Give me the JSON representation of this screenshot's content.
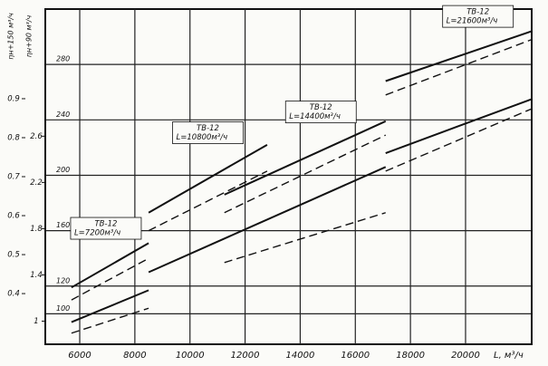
{
  "chart_data": {
    "type": "line",
    "x_label": "L, м³/ч",
    "y_labels": [
      "ηн+150 м³/ч",
      "ηн+90 м³/ч"
    ],
    "xlim": [
      4750,
      22400
    ],
    "xticks": [
      6000,
      8000,
      10000,
      12000,
      14000,
      16000,
      18000,
      20000
    ],
    "ylim": [
      78,
      320
    ],
    "yticks": [
      100,
      120,
      160,
      200,
      240,
      280
    ],
    "y2lim": [
      0.8,
      3.7
    ],
    "y2ticks": [
      1,
      1.4,
      1.8,
      2.2,
      2.6
    ],
    "y3lim": [
      0.27,
      1.13
    ],
    "y3ticks": [
      0.4,
      0.5,
      0.6,
      0.7,
      0.8,
      0.9
    ],
    "grid": true,
    "series": [
      {
        "color": "#111111",
        "style": "solid",
        "x": [
          5700,
          8500,
          null,
          8500,
          12800,
          null,
          11250,
          17100,
          null,
          17100,
          22400
        ],
        "values": [
          119,
          151,
          null,
          173,
          222,
          null,
          186,
          239,
          null,
          268,
          304
        ]
      },
      {
        "color": "#111111",
        "style": "dashed",
        "x": [
          5700,
          8500,
          null,
          8500,
          12800,
          null,
          11250,
          17100,
          null,
          17100,
          22400
        ],
        "values": [
          110,
          140,
          null,
          160,
          203,
          null,
          173,
          229,
          null,
          258,
          298
        ]
      },
      {
        "color": "#111111",
        "style": "solid",
        "x": [
          5700,
          8500,
          null,
          8500,
          17100,
          null,
          17100,
          22400
        ],
        "values": [
          94,
          117,
          null,
          130,
          206,
          null,
          216,
          255
        ]
      },
      {
        "color": "#111111",
        "style": "dashed",
        "x": [
          5700,
          8500,
          null,
          11250,
          17100,
          null,
          17100,
          22400
        ],
        "values": [
          86,
          104,
          null,
          137,
          173,
          null,
          203,
          248
        ]
      }
    ],
    "annotations": [
      {
        "title": "ТВ-12",
        "text": "L=7200м³/ч",
        "x": 5800,
        "y": 163
      },
      {
        "title": "ТВ-12",
        "text": "L=10800м³/ч",
        "x": 9500,
        "y": 232
      },
      {
        "title": "ТВ-12",
        "text": "L=14400м³/ч",
        "x": 13600,
        "y": 247
      },
      {
        "title": "ТВ-12",
        "text": "L=21600м³/ч",
        "x": 19300,
        "y": 316
      }
    ]
  }
}
